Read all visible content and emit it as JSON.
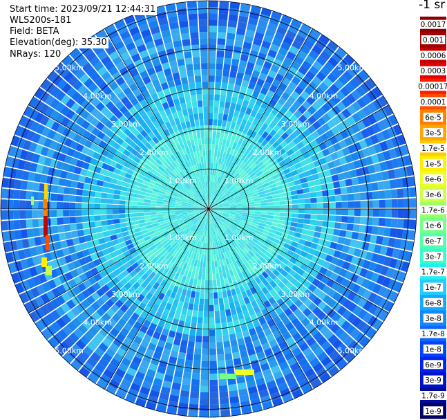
{
  "header": {
    "start_time": "Start time: 2023/09/21 12:44:31",
    "instrument": "WLS200s-181",
    "field": "Field: BETA",
    "elevation": "Elevation(deg): 35.30",
    "nrays": "NRays: 120"
  },
  "colorbar": {
    "unit_label": "-1 sr",
    "labels": [
      "0.0017",
      "0.001",
      "0.0006",
      "0.0003",
      "0.00017",
      "0.0001",
      "6e-5",
      "3e-5",
      "1.7e-5",
      "1e-5",
      "6e-6",
      "3e-6",
      "1.7e-6",
      "1e-6",
      "6e-7",
      "3e-7",
      "1.7e-7",
      "1e-7",
      "6e-8",
      "3e-8",
      "1.7e-8",
      "1e-8",
      "6e-9",
      "3e-9",
      "1.7e-9",
      "1e-9"
    ],
    "colors": [
      "#8b0000",
      "#a50000",
      "#c40000",
      "#e20000",
      "#ff1a00",
      "#ff4d00",
      "#ff8000",
      "#ffa600",
      "#ffcc00",
      "#ffee00",
      "#eeff22",
      "#ccff44",
      "#99ff66",
      "#77ff88",
      "#55ffaa",
      "#33ffcc",
      "#22eeee",
      "#22ccff",
      "#11aaff",
      "#1188ff",
      "#1166ff",
      "#0044ff",
      "#0022ee",
      "#0011cc",
      "#000a99",
      "#000066"
    ]
  },
  "chart_data": {
    "type": "polar-ppi",
    "field": "BETA",
    "nrays": 120,
    "range_rings_km": [
      1,
      2,
      3,
      4,
      5
    ],
    "range_labels": [
      "1.00km",
      "2.00km",
      "3.00km",
      "4.00km",
      "5.00km"
    ],
    "max_range_km": 5.2,
    "spokes_deg": [
      0,
      30,
      60,
      90,
      120,
      150,
      180,
      210,
      240,
      270,
      300,
      330
    ],
    "color_scale": "log",
    "value_range": [
      1e-09,
      0.0017
    ]
  }
}
